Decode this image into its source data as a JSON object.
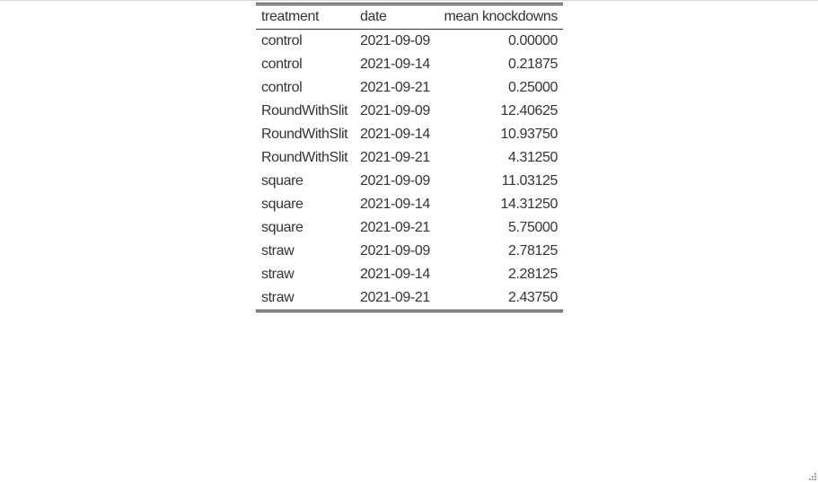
{
  "table": {
    "columns": [
      "treatment",
      "date",
      "mean knockdowns"
    ],
    "rows": [
      [
        "control",
        "2021-09-09",
        "0.00000"
      ],
      [
        "control",
        "2021-09-14",
        "0.21875"
      ],
      [
        "control",
        "2021-09-21",
        "0.25000"
      ],
      [
        "RoundWithSlit",
        "2021-09-09",
        "12.40625"
      ],
      [
        "RoundWithSlit",
        "2021-09-14",
        "10.93750"
      ],
      [
        "RoundWithSlit",
        "2021-09-21",
        "4.31250"
      ],
      [
        "square",
        "2021-09-09",
        "11.03125"
      ],
      [
        "square",
        "2021-09-14",
        "14.31250"
      ],
      [
        "square",
        "2021-09-21",
        "5.75000"
      ],
      [
        "straw",
        "2021-09-09",
        "2.78125"
      ],
      [
        "straw",
        "2021-09-14",
        "2.28125"
      ],
      [
        "straw",
        "2021-09-21",
        "2.43750"
      ]
    ]
  },
  "icons": {
    "resize_grip": "resize-grip-icon"
  },
  "colors": {
    "text": "#333333",
    "rule": "#222222",
    "background": "#ffffff"
  }
}
